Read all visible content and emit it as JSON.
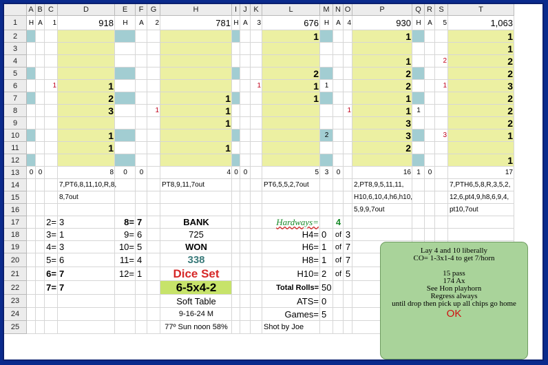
{
  "colors": {
    "yellow": "#ecf0a2",
    "teal": "#a2cdd2",
    "red": "#c0001a",
    "green": "#1a8a2a",
    "title_red": "#d62828",
    "slate": "#3a7a7a",
    "note_bg": "#a9d39a",
    "frame": "#0a2a8c"
  },
  "columns": [
    "A",
    "B",
    "C",
    "D",
    "E",
    "F",
    "G",
    "H",
    "I",
    "J",
    "K",
    "L",
    "M",
    "N",
    "O",
    "P",
    "Q",
    "R",
    "S",
    "T"
  ],
  "rows": [
    "1",
    "2",
    "3",
    "4",
    "5",
    "6",
    "7",
    "8",
    "9",
    "10",
    "11",
    "12",
    "13",
    "14",
    "15",
    "16",
    "17",
    "18",
    "19",
    "20",
    "21",
    "22",
    "23",
    "24",
    "25"
  ],
  "cells": {
    "A1": "H",
    "B1": "A",
    "C1": "1",
    "D1": "918",
    "E1": "H",
    "F1": "A",
    "G1": "2",
    "H1": "781",
    "I1": "H",
    "J1": "A",
    "K1": "3",
    "L1": "676",
    "M1": "H",
    "N1": "A",
    "O1": "4",
    "P1": "930",
    "Q1": "H",
    "R1": "A",
    "S1": "5",
    "T1": "1,063",
    "L2": "1",
    "P2": "1",
    "T2": "1",
    "T3": "1",
    "P4": "1",
    "S4": "2",
    "T4": "2",
    "L5": "2",
    "P5": "2",
    "T5": "2",
    "C6": "1",
    "D6": "1",
    "K6": "1",
    "L6": "1",
    "M6": "1",
    "P6": "2",
    "S6": "1",
    "T6": "3",
    "D7": "2",
    "H7": "1",
    "L7": "1",
    "P7": "1",
    "T7": "2",
    "D8": "3",
    "G8": "1",
    "H8": "1",
    "O8": "1",
    "P8": "1",
    "Q8": "1",
    "T8": "2",
    "H9": "1",
    "P9": "3",
    "T9": "2",
    "D10": "1",
    "M10": "2",
    "P10": "3",
    "S10": "3",
    "T10": "1",
    "D11": "1",
    "H11": "1",
    "P11": "2",
    "T12": "1",
    "A13": "0",
    "B13": "0",
    "D13": "8",
    "E13": "0",
    "F13": "0",
    "H13": "4",
    "I13": "0",
    "J13": "0",
    "L13": "5",
    "M13": "3",
    "N13": "0",
    "P13": "16",
    "Q13": "1",
    "R13": "0",
    "T13": "17",
    "D14": "7,PT6,8,11,10,R,8,",
    "D15": "8,7out",
    "H14": "PT8,9,11,7out",
    "L14": "PT6,5,5,2,7out",
    "P14": "2,PT8,9,5,11,11,",
    "P15": "H10,6,10,4,h6,h10,",
    "P16": "5,9,9,7out",
    "T14": "7,PTH6,5,8,R,3,5,2,",
    "T15": "12,6,pt4,9,h8,6,9,4,",
    "T16": "pt10,7out",
    "C17": "2=",
    "D17": "3",
    "C18": "3=",
    "D18": "1",
    "C19": "4=",
    "D19": "3",
    "C20": "5=",
    "D20": "6",
    "C21": "6=",
    "D21": "7",
    "C22": "7=",
    "D22": "7",
    "E17": "8=",
    "F17": "7",
    "E18": "9=",
    "F18": "6",
    "E19": "10=",
    "F19": "5",
    "E20": "11=",
    "F20": "4",
    "E21": "12=",
    "F21": "1",
    "H17": "BANK",
    "H18": "725",
    "H19": "WON",
    "H20": "338",
    "H21": "Dice Set",
    "H22": "6-5x4-2",
    "H23": "Soft Table",
    "H24": "9-16-24 M",
    "H25": "77º Sun noon 58%",
    "L17": "Hardways=",
    "N17": "4",
    "L18": "H4=",
    "M18": "0",
    "N18": "of",
    "O18": "3",
    "L19": "H6=",
    "M19": "1",
    "N19": "of",
    "O19": "7",
    "L20": "H8=",
    "M20": "1",
    "N20": "of",
    "O20": "7",
    "L21": "H10=",
    "M21": "2",
    "N21": "of",
    "O21": "5",
    "L22": "Total Rolls=",
    "M22": "50",
    "L23": "ATS=",
    "M23": "0",
    "L24": "Games=",
    "M24": "5",
    "L25": "Shot by Joe"
  },
  "note": {
    "lines": [
      "Lay 4 and 10 liberally",
      "CO= 1-3x1-4 to get 7/horn",
      "",
      "15 pass",
      "174 Ax",
      "See Hon playhorn",
      "Regress always",
      "until drop then pick up all chips go home"
    ],
    "ok": "OK"
  }
}
